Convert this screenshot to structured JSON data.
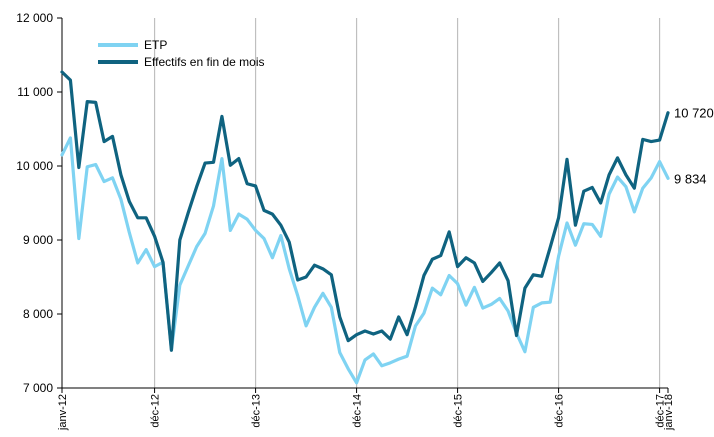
{
  "chart_data": {
    "type": "line",
    "title": "",
    "xlabel": "",
    "ylabel": "",
    "ylim": [
      7000,
      12000
    ],
    "yticks": [
      7000,
      8000,
      9000,
      10000,
      11000,
      12000
    ],
    "ytick_labels": [
      "7 000",
      "8 000",
      "9 000",
      "10 000",
      "11 000",
      "12 000"
    ],
    "xticks": [
      {
        "index": 0,
        "label": "janv-12"
      },
      {
        "index": 11,
        "label": "déc-12"
      },
      {
        "index": 23,
        "label": "déc-13"
      },
      {
        "index": 35,
        "label": "déc-14"
      },
      {
        "index": 47,
        "label": "déc-15"
      },
      {
        "index": 59,
        "label": "déc-16"
      },
      {
        "index": 71,
        "label": "déc-17"
      },
      {
        "index": 72,
        "label": "janv-18"
      }
    ],
    "vertical_gridlines_at": [
      11,
      23,
      35,
      47,
      59,
      71
    ],
    "legend_position": "top-left",
    "series": [
      {
        "name": "ETP",
        "color": "#7fd3f2",
        "values": [
          10150,
          10380,
          9020,
          9990,
          10020,
          9790,
          9840,
          9550,
          9100,
          8690,
          8870,
          8640,
          8700,
          7520,
          8390,
          8650,
          8910,
          9090,
          9460,
          10100,
          9130,
          9350,
          9280,
          9130,
          9020,
          8760,
          9060,
          8610,
          8250,
          7840,
          8090,
          8280,
          8090,
          7480,
          7260,
          7070,
          7380,
          7460,
          7300,
          7340,
          7390,
          7430,
          7840,
          8010,
          8350,
          8260,
          8520,
          8410,
          8120,
          8360,
          8080,
          8130,
          8210,
          8040,
          7740,
          7490,
          8090,
          8150,
          8160,
          8780,
          9230,
          8930,
          9220,
          9210,
          9050,
          9620,
          9850,
          9720,
          9380,
          9700,
          9840,
          10060,
          9834
        ]
      },
      {
        "name": "Effectifs en fin de mois",
        "color": "#0f6380",
        "values": [
          11270,
          11160,
          9980,
          10870,
          10860,
          10330,
          10400,
          9880,
          9520,
          9300,
          9300,
          9050,
          8700,
          7510,
          9000,
          9370,
          9720,
          10040,
          10050,
          10670,
          10010,
          10100,
          9760,
          9730,
          9400,
          9350,
          9200,
          8970,
          8460,
          8500,
          8660,
          8610,
          8530,
          7960,
          7640,
          7720,
          7770,
          7730,
          7770,
          7660,
          7960,
          7720,
          8100,
          8520,
          8740,
          8790,
          9110,
          8640,
          8760,
          8690,
          8440,
          8560,
          8690,
          8450,
          7710,
          8350,
          8530,
          8510,
          8900,
          9300,
          10090,
          9200,
          9660,
          9710,
          9500,
          9880,
          10110,
          9880,
          9700,
          10360,
          10330,
          10350,
          10720
        ]
      }
    ],
    "end_labels": [
      {
        "series": "Effectifs en fin de mois",
        "text": "10 720"
      },
      {
        "series": "ETP",
        "text": "9 834"
      }
    ]
  }
}
